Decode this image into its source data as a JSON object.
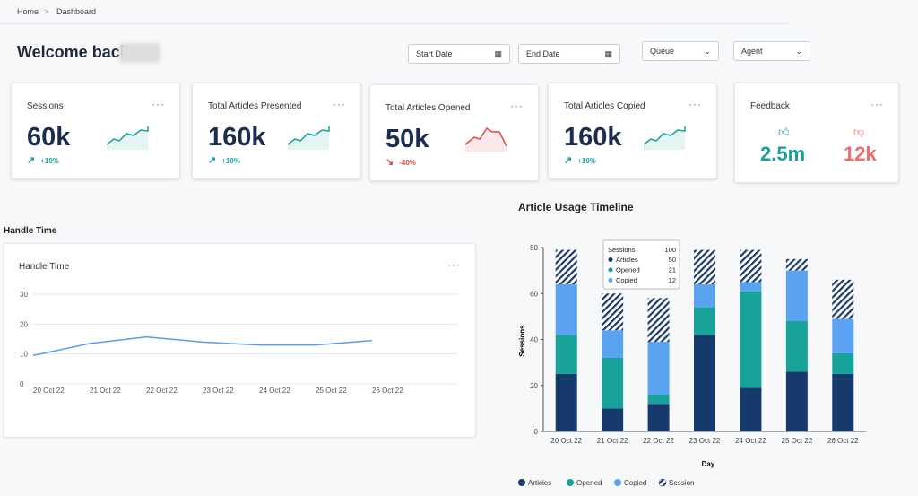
{
  "breadcrumb": [
    "Home",
    "Dashboard"
  ],
  "welcome": "Welcome back",
  "filters": [
    "Start Date",
    "End Date",
    "Queue",
    "Agent"
  ],
  "cards": [
    {
      "title": "Sessions",
      "value": "60k",
      "change": "+10%"
    },
    {
      "title": "Total Articles Presented",
      "value": "160k",
      "change": "+10%"
    },
    {
      "title": "Total Articles Opened",
      "value": "50k",
      "change": "-40%"
    },
    {
      "title": "Total Articles Copied",
      "value": "160k",
      "change": "+10%"
    }
  ],
  "feedback": {
    "title": "Feedback",
    "positive": "2.5m",
    "negative": "12k"
  },
  "section_label": "Handle Time",
  "chart_data": [
    {
      "type": "line",
      "title": "Handle Time",
      "categories": [
        "20 Oct 22",
        "21 Oct 22",
        "22 Oct 22",
        "23 Oct 22",
        "24 Oct 22",
        "25 Oct 22",
        "26 Oct 22"
      ],
      "values": [
        9.5,
        13.5,
        15.7,
        14,
        13,
        13,
        14.5
      ],
      "color": "#5b9cf0",
      "ylim": [
        0,
        30
      ],
      "yticks": [
        0,
        10,
        20,
        30
      ],
      "grid": true
    },
    {
      "type": "bar",
      "stacked": true,
      "title": "Article Usage Timeline",
      "x_label": "Day",
      "y_label": "Sessions",
      "categories": [
        "20 Oct 22",
        "21 Oct 22",
        "22 Oct 22",
        "23 Oct 22",
        "24 Oct 22",
        "25 Oct 22",
        "26 Oct 22"
      ],
      "series": [
        {
          "name": "Articles",
          "color": "#163a6b",
          "values": [
            25,
            10,
            12,
            42,
            19,
            26,
            25
          ]
        },
        {
          "name": "Opened",
          "color": "#17a39a",
          "values": [
            17,
            22,
            4,
            12,
            42,
            22,
            9
          ]
        },
        {
          "name": "Copied",
          "color": "#5aa3f0",
          "values": [
            22,
            12,
            23,
            10,
            4,
            22,
            15
          ]
        },
        {
          "name": "Session",
          "color": "#1c3a66",
          "pattern": "hatch",
          "values": [
            15,
            16,
            19,
            15,
            14,
            5,
            17
          ]
        }
      ],
      "ylim": [
        0,
        80
      ],
      "yticks": [
        0,
        20,
        40,
        60,
        80
      ],
      "grid": false,
      "legend": "bottom",
      "tooltip": {
        "title": "Sessions",
        "total": "100",
        "items": [
          {
            "name": "Articles",
            "value": "50"
          },
          {
            "name": "Opened",
            "value": "21"
          },
          {
            "name": "Copied",
            "value": "12"
          }
        ]
      }
    }
  ]
}
